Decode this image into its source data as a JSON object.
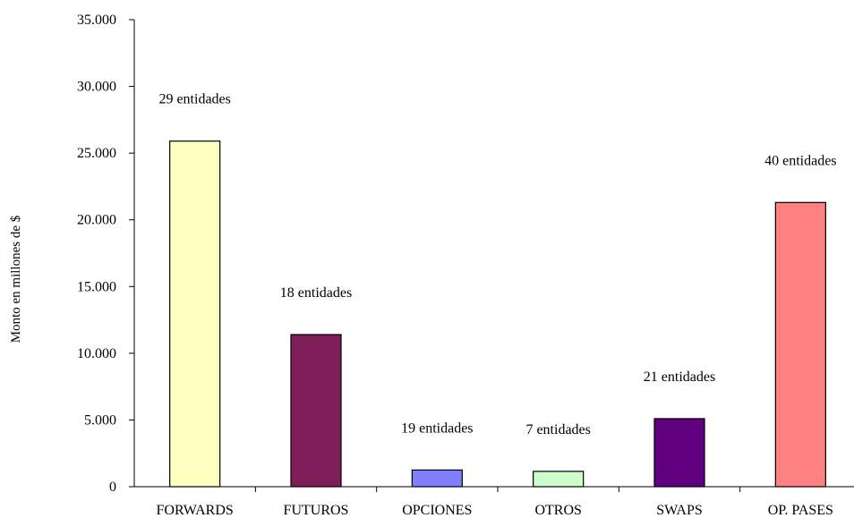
{
  "chart_data": {
    "type": "bar",
    "title": "",
    "xlabel": "",
    "ylabel": "Monto en millones de $",
    "ylim": [
      0,
      35000
    ],
    "y_ticks": [
      0,
      5000,
      10000,
      15000,
      20000,
      25000,
      30000,
      35000
    ],
    "y_tick_labels": [
      "0",
      "5.000",
      "10.000",
      "15.000",
      "20.000",
      "25.000",
      "30.000",
      "35.000"
    ],
    "grid": false,
    "legend": "none",
    "categories": [
      "FORWARDS",
      "FUTUROS",
      "OPCIONES",
      "OTROS",
      "SWAPS",
      "OP. PASES"
    ],
    "values": [
      25900,
      11400,
      1250,
      1150,
      5100,
      21300
    ],
    "data_labels": [
      "29 entidades",
      "18 entidades",
      "19 entidades",
      "7 entidades",
      "21 entidades",
      "40 entidades"
    ],
    "colors": [
      "#ffffc0",
      "#7f1f5a",
      "#8080ff",
      "#ccffcc",
      "#5f007f",
      "#ff8080"
    ]
  }
}
